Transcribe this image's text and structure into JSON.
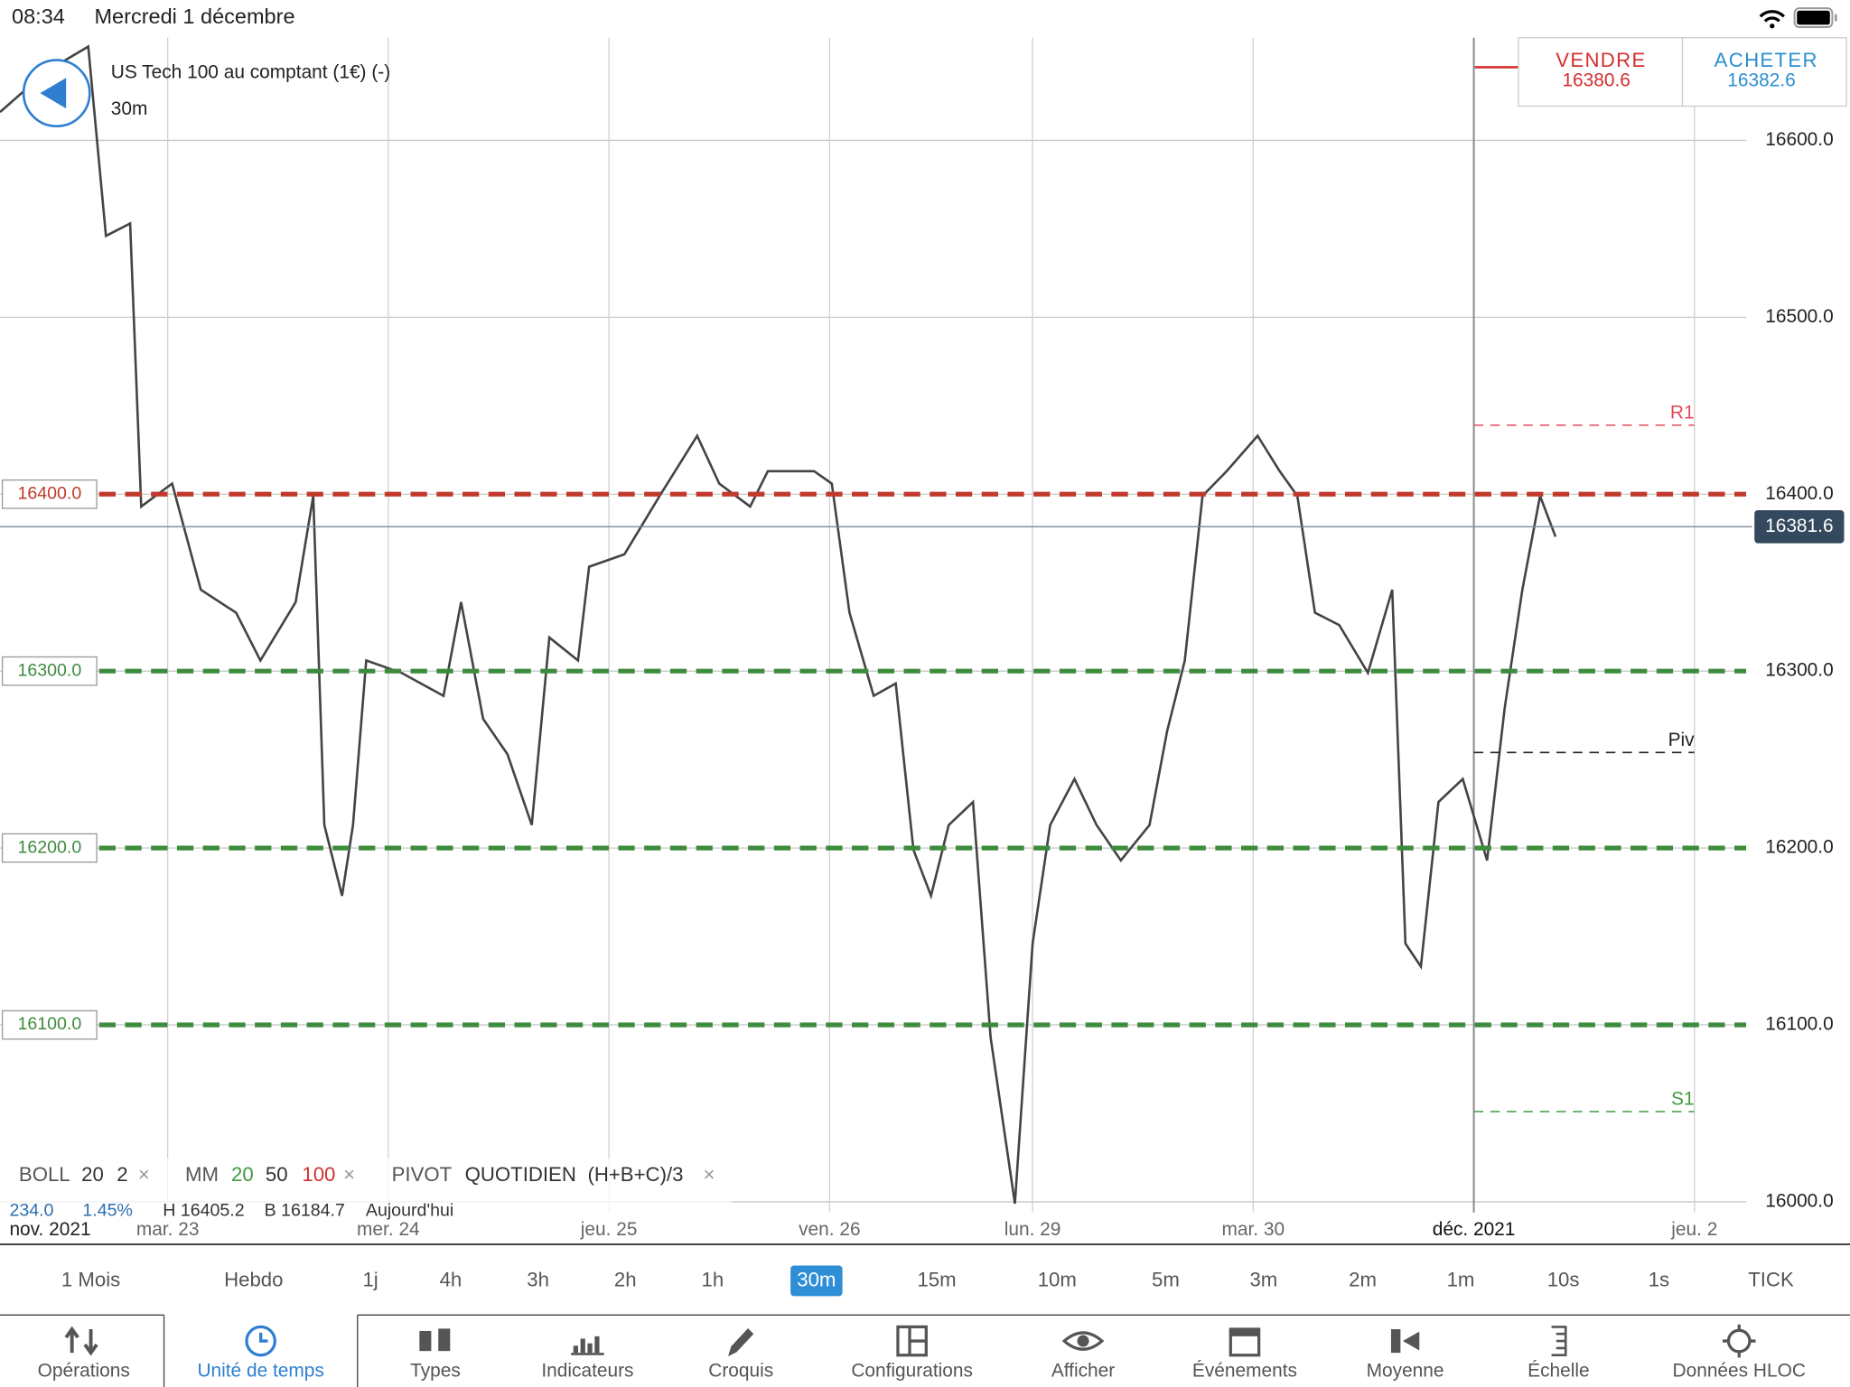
{
  "status_bar": {
    "time": "08:34",
    "date": "Mercredi 1 décembre"
  },
  "instrument": {
    "name": "US Tech 100 au comptant (1€) (-)",
    "timeframe": "30m"
  },
  "quote": {
    "sell_label": "VENDRE",
    "sell_price": "16380.6",
    "buy_label": "ACHETER",
    "buy_price": "16382.6"
  },
  "chart_data": {
    "type": "line",
    "x_period_label": "nov. 2021",
    "x": [
      0.24,
      0.45,
      0.64,
      0.72,
      0.83,
      0.88,
      1.02,
      1.15,
      1.31,
      1.42,
      1.58,
      1.66,
      1.71,
      1.79,
      1.84,
      1.9,
      2.06,
      2.25,
      2.33,
      2.43,
      2.54,
      2.65,
      2.73,
      2.86,
      2.91,
      3.07,
      3.23,
      3.4,
      3.5,
      3.64,
      3.72,
      3.93,
      4.01,
      4.09,
      4.2,
      4.3,
      4.38,
      4.46,
      4.54,
      4.65,
      4.73,
      4.84,
      4.92,
      5.0,
      5.11,
      5.21,
      5.32,
      5.45,
      5.53,
      5.61,
      5.69,
      5.8,
      5.94,
      6.04,
      6.12,
      6.2,
      6.31,
      6.44,
      6.55,
      6.61,
      6.68,
      6.76,
      6.87,
      6.98,
      7.06,
      7.14,
      7.22,
      7.29
    ],
    "values": [
      16616,
      16639,
      16653,
      16546,
      16553,
      16393,
      16406,
      16346,
      16333,
      16306,
      16339,
      16399,
      16213,
      16173,
      16213,
      16306,
      16299,
      16286,
      16339,
      16273,
      16253,
      16213,
      16319,
      16306,
      16359,
      16366,
      16399,
      16433,
      16406,
      16393,
      16413,
      16413,
      16406,
      16333,
      16286,
      16293,
      16199,
      16173,
      16213,
      16226,
      16093,
      15999,
      16146,
      16213,
      16239,
      16213,
      16193,
      16213,
      16266,
      16306,
      16399,
      16413,
      16433,
      16413,
      16399,
      16333,
      16326,
      16299,
      16346,
      16146,
      16133,
      16226,
      16239,
      16193,
      16279,
      16346,
      16399,
      16376
    ],
    "color": "#444444",
    "xlim": [
      0.24,
      8.625
    ],
    "xticks": [
      {
        "value": 1,
        "label": "mar. 23"
      },
      {
        "value": 2,
        "label": "mer. 24"
      },
      {
        "value": 3,
        "label": "jeu. 25"
      },
      {
        "value": 4,
        "label": "ven. 26"
      },
      {
        "value": 4.92,
        "label": "lun. 29"
      },
      {
        "value": 5.92,
        "label": "mar. 30"
      },
      {
        "value": 6.92,
        "label": "déc. 2021"
      },
      {
        "value": 7.92,
        "label": "jeu. 2"
      }
    ],
    "ylim": [
      15994,
      16658
    ],
    "yticks": [
      {
        "value": 16000,
        "label": "16000.0"
      },
      {
        "value": 16100,
        "label": "16100.0"
      },
      {
        "value": 16200,
        "label": "16200.0"
      },
      {
        "value": 16300,
        "label": "16300.0"
      },
      {
        "value": 16400,
        "label": "16400.0"
      },
      {
        "value": 16500,
        "label": "16500.0"
      },
      {
        "value": 16600,
        "label": "16600.0"
      }
    ],
    "grid": true,
    "levels": [
      {
        "value": 16400,
        "label": "16400.0",
        "color": "#c0392b"
      },
      {
        "value": 16300,
        "label": "16300.0",
        "color": "#3d8b3d"
      },
      {
        "value": 16200,
        "label": "16200.0",
        "color": "#3d8b3d"
      },
      {
        "value": 16100,
        "label": "16100.0",
        "color": "#3d8b3d"
      }
    ],
    "pivots": [
      {
        "name": "R1",
        "value": 16439,
        "color": "#e24b5a"
      },
      {
        "name": "Piv",
        "value": 16254,
        "color": "#222222"
      },
      {
        "name": "S1",
        "value": 16051,
        "color": "#3d9b3d"
      }
    ],
    "last_price": 16381.6,
    "now_x": 6.92
  },
  "indicators": {
    "boll": [
      "BOLL",
      "20",
      "2",
      "×"
    ],
    "mm": [
      "MM",
      "20",
      "50",
      "100",
      "×"
    ],
    "pivot": [
      "PIVOT",
      "QUOTIDIEN",
      "(H+B+C)/3",
      "×"
    ],
    "stats": [
      "234.0",
      "1.45%",
      "H 16405.2",
      "B 16184.7",
      "Aujourd'hui"
    ]
  },
  "timeframes": {
    "items": [
      "1 Mois",
      "Hebdo",
      "1j",
      "4h",
      "3h",
      "2h",
      "1h",
      "30m",
      "15m",
      "10m",
      "5m",
      "3m",
      "2m",
      "1m",
      "10s",
      "1s",
      "TICK"
    ],
    "selected": 7
  },
  "tabs": {
    "items": [
      "Opérations",
      "Unité de temps",
      "Types",
      "Indicateurs",
      "Croquis",
      "Configurations",
      "Afficher",
      "Événements",
      "Moyenne",
      "Échelle",
      "Données HLOC"
    ],
    "active": 1
  }
}
